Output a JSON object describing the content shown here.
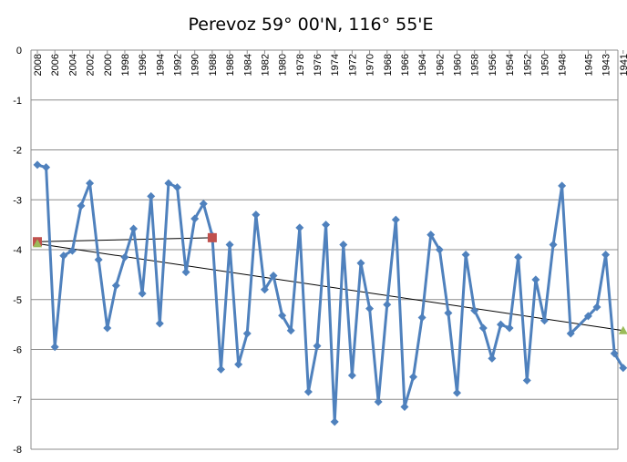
{
  "chart_data": {
    "type": "line",
    "title": "Perevoz 59° 00'N, 116° 55'E",
    "xlabel": "",
    "ylabel": "",
    "ylim": [
      -8,
      0
    ],
    "y_ticks": [
      0,
      -1,
      -2,
      -3,
      -4,
      -5,
      -6,
      -7,
      -8
    ],
    "x_tick_labels": [
      "2008",
      "2006",
      "2004",
      "2002",
      "2000",
      "1998",
      "1996",
      "1994",
      "1992",
      "1990",
      "1988",
      "1986",
      "1984",
      "1982",
      "1980",
      "1978",
      "1976",
      "1974",
      "1972",
      "1970",
      "1968",
      "1966",
      "1964",
      "1962",
      "1960",
      "1958",
      "1956",
      "1954",
      "1952",
      "1950",
      "1948",
      "1945",
      "1943",
      "1941"
    ],
    "x_direction": "descending",
    "grid": true,
    "legend": "none",
    "series": [
      {
        "color": "#4f81bd",
        "marker": "diamond",
        "x": [
          2008,
          2007,
          2006,
          2005,
          2004,
          2003,
          2002,
          2001,
          2000,
          1999,
          1998,
          1997,
          1996,
          1995,
          1994,
          1993,
          1992,
          1991,
          1990,
          1989,
          1988,
          1987,
          1986,
          1985,
          1984,
          1983,
          1982,
          1981,
          1980,
          1979,
          1978,
          1977,
          1976,
          1975,
          1974,
          1973,
          1972,
          1971,
          1970,
          1969,
          1968,
          1967,
          1966,
          1965,
          1964,
          1963,
          1962,
          1961,
          1960,
          1959,
          1958,
          1957,
          1956,
          1955,
          1954,
          1953,
          1952,
          1951,
          1950,
          1949,
          1948,
          1947,
          1945,
          1944,
          1943,
          1942,
          1941
        ],
        "values": [
          -2.3,
          -2.35,
          -5.95,
          -4.12,
          -4.02,
          -3.12,
          -2.67,
          -4.2,
          -5.57,
          -4.72,
          -4.15,
          -3.58,
          -4.88,
          -2.93,
          -5.48,
          -2.67,
          -2.75,
          -4.45,
          -3.38,
          -3.08,
          -3.72,
          -6.4,
          -3.9,
          -6.3,
          -5.68,
          -3.3,
          -4.8,
          -4.52,
          -5.32,
          -5.62,
          -3.56,
          -6.85,
          -5.93,
          -3.5,
          -7.45,
          -3.9,
          -6.52,
          -4.27,
          -5.18,
          -7.05,
          -5.1,
          -3.4,
          -7.15,
          -6.55,
          -5.36,
          -3.7,
          -4.0,
          -5.27,
          -6.87,
          -4.1,
          -5.22,
          -5.57,
          -6.18,
          -5.5,
          -5.57,
          -4.15,
          -6.62,
          -4.6,
          -5.42,
          -3.9,
          -2.72,
          -5.68,
          -5.33,
          -5.15,
          -4.1,
          -6.08,
          -6.37
        ]
      },
      {
        "color": "#000000",
        "marker": "none",
        "x": [
          2008,
          1941
        ],
        "values": [
          -3.88,
          -5.62
        ]
      },
      {
        "color": "#000000",
        "marker": "none",
        "x": [
          2008,
          1988
        ],
        "values": [
          -3.84,
          -3.76
        ]
      }
    ],
    "point_markers": [
      {
        "x": 2008,
        "value": -3.84,
        "color": "#c0504d",
        "shape": "square"
      },
      {
        "x": 1988,
        "value": -3.76,
        "color": "#c0504d",
        "shape": "square"
      },
      {
        "x": 2008,
        "value": -3.88,
        "color": "#9bbb59",
        "shape": "triangle"
      },
      {
        "x": 1941,
        "value": -5.62,
        "color": "#9bbb59",
        "shape": "triangle"
      }
    ]
  }
}
